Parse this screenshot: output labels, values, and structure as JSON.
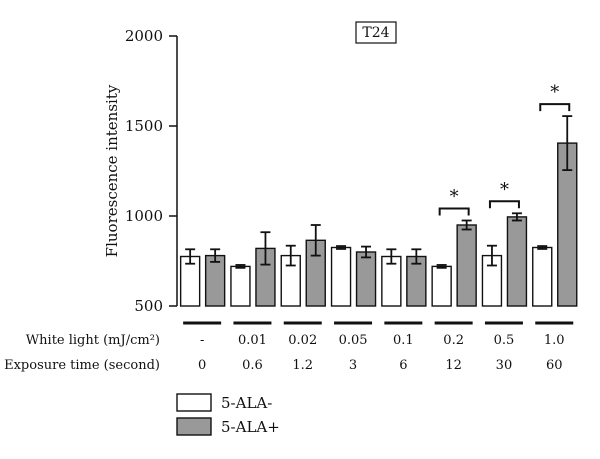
{
  "chart_data": {
    "type": "bar",
    "title": "T24",
    "ylabel": "Fluorescence intensity",
    "xlabel": "",
    "ylim": [
      500,
      2000
    ],
    "yticks": [
      500,
      1000,
      1500,
      2000
    ],
    "grid": false,
    "categories": [
      "-",
      "0.01",
      "0.02",
      "0.05",
      "0.1",
      "0.2",
      "0.5",
      "1.0"
    ],
    "rows": [
      {
        "label": "White light (mJ/cm²)",
        "values": [
          "-",
          "0.01",
          "0.02",
          "0.05",
          "0.1",
          "0.2",
          "0.5",
          "1.0"
        ]
      },
      {
        "label": "Exposure time (second)",
        "values": [
          "0",
          "0.6",
          "1.2",
          "3",
          "6",
          "12",
          "30",
          "60"
        ]
      }
    ],
    "series": [
      {
        "name": "5-ALA-",
        "color": "#ffffff",
        "values": [
          775,
          720,
          780,
          825,
          775,
          720,
          780,
          825
        ],
        "errors": [
          40,
          8,
          55,
          8,
          40,
          8,
          55,
          8
        ]
      },
      {
        "name": "5-ALA+",
        "color": "#999999",
        "values": [
          780,
          820,
          865,
          800,
          775,
          950,
          995,
          1405
        ],
        "errors": [
          35,
          90,
          85,
          30,
          40,
          25,
          20,
          150
        ]
      }
    ],
    "significance": [
      {
        "category": "0.2",
        "label": "*"
      },
      {
        "category": "0.5",
        "label": "*"
      },
      {
        "category": "1.0",
        "label": "*"
      }
    ],
    "legend_position": "bottom-left"
  }
}
